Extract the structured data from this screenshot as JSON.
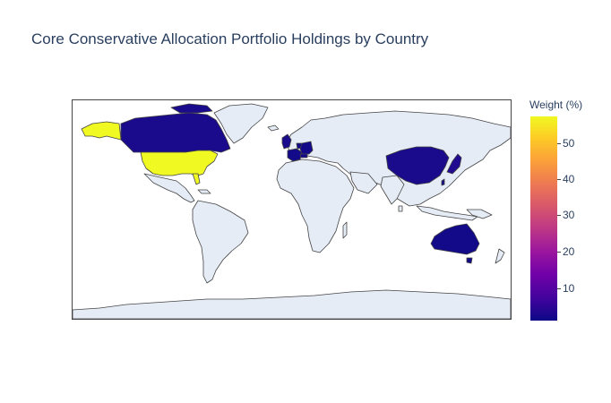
{
  "title": "Core Conservative Allocation Portfolio Holdings by Country",
  "colorbar": {
    "title": "Weight (%)",
    "ticks": [
      "50",
      "40",
      "30",
      "20",
      "10"
    ],
    "colorscale": [
      "#0d0887",
      "#46039f",
      "#7201a8",
      "#9c179e",
      "#bd3786",
      "#d8576b",
      "#ed7953",
      "#fb9f3a",
      "#fdca26",
      "#f0f921"
    ]
  },
  "map_data": {
    "projection": "equirectangular",
    "land_color": "#e5ecf6",
    "border_color": "#444444",
    "value_range": [
      0.5,
      57
    ],
    "highlighted": [
      {
        "country": "United States",
        "weight": 57,
        "color": "#f0f921"
      },
      {
        "country": "Canada",
        "weight": 3,
        "color": "#1a0a8c"
      },
      {
        "country": "United Kingdom",
        "weight": 3,
        "color": "#1a0a8c"
      },
      {
        "country": "France",
        "weight": 2,
        "color": "#130a89"
      },
      {
        "country": "Germany",
        "weight": 2,
        "color": "#130a89"
      },
      {
        "country": "Switzerland",
        "weight": 2,
        "color": "#130a89"
      },
      {
        "country": "Netherlands",
        "weight": 1,
        "color": "#0f0887"
      },
      {
        "country": "China",
        "weight": 3,
        "color": "#1a0a8c"
      },
      {
        "country": "Japan",
        "weight": 4,
        "color": "#220a90"
      },
      {
        "country": "Taiwan",
        "weight": 1,
        "color": "#0f0887"
      },
      {
        "country": "Australia",
        "weight": 2,
        "color": "#130a89"
      }
    ]
  }
}
